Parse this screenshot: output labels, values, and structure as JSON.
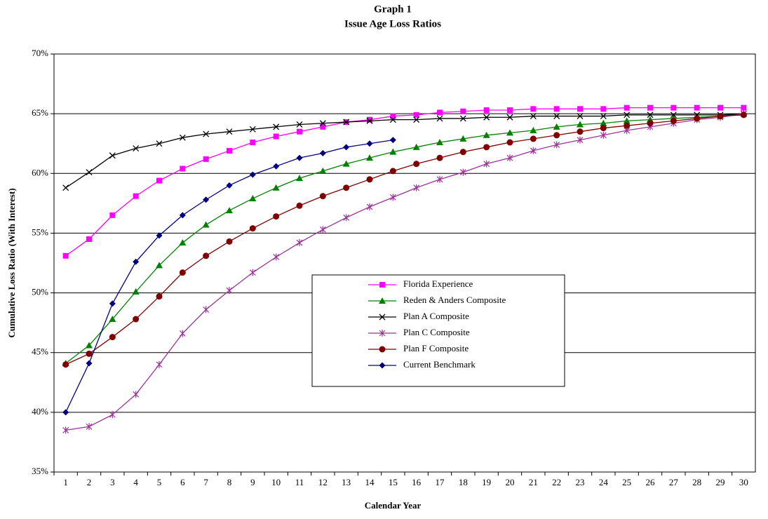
{
  "chart_data": {
    "type": "line",
    "title": "Graph 1",
    "subtitle": "Issue Age Loss Ratios",
    "x_label": "Calendar Year",
    "y_label": "Cumulative Loss Ratio (With Interest)",
    "categories": [
      1,
      2,
      3,
      4,
      5,
      6,
      7,
      8,
      9,
      10,
      11,
      12,
      13,
      14,
      15,
      16,
      17,
      18,
      19,
      20,
      21,
      22,
      23,
      24,
      25,
      26,
      27,
      28,
      29,
      30
    ],
    "ylim": [
      35,
      70
    ],
    "yticks": [
      {
        "value": 35,
        "label": "35%"
      },
      {
        "value": 40,
        "label": "40%"
      },
      {
        "value": 45,
        "label": "45%"
      },
      {
        "value": 50,
        "label": "50%"
      },
      {
        "value": 55,
        "label": "55%"
      },
      {
        "value": 60,
        "label": "60%"
      },
      {
        "value": 65,
        "label": "65%"
      },
      {
        "value": 70,
        "label": "70%"
      }
    ],
    "grid": true,
    "series": [
      {
        "name": "Florida Experience",
        "color": "#ff00ff",
        "marker": "square",
        "values": [
          53.1,
          54.5,
          56.5,
          58.1,
          59.4,
          60.4,
          61.2,
          61.9,
          62.6,
          63.1,
          63.5,
          63.9,
          64.3,
          64.5,
          64.8,
          64.9,
          65.1,
          65.2,
          65.3,
          65.3,
          65.4,
          65.4,
          65.4,
          65.4,
          65.5,
          65.5,
          65.5,
          65.5,
          65.5,
          65.5
        ]
      },
      {
        "name": "Reden & Anders Composite",
        "color": "#008000",
        "marker": "triangle",
        "values": [
          44.1,
          45.6,
          47.8,
          50.1,
          52.3,
          54.2,
          55.7,
          56.9,
          57.9,
          58.8,
          59.6,
          60.2,
          60.8,
          61.3,
          61.8,
          62.2,
          62.6,
          62.9,
          63.2,
          63.4,
          63.6,
          63.9,
          64.1,
          64.2,
          64.4,
          64.5,
          64.6,
          64.7,
          64.8,
          65.0
        ]
      },
      {
        "name": "Plan A Composite",
        "color": "#000000",
        "marker": "x",
        "values": [
          58.8,
          60.1,
          61.5,
          62.1,
          62.5,
          63.0,
          63.3,
          63.5,
          63.7,
          63.9,
          64.1,
          64.2,
          64.3,
          64.4,
          64.5,
          64.5,
          64.6,
          64.6,
          64.7,
          64.7,
          64.8,
          64.8,
          64.8,
          64.8,
          64.9,
          64.9,
          64.9,
          64.9,
          64.9,
          65.0
        ]
      },
      {
        "name": "Plan C Composite",
        "color": "#993399",
        "marker": "asterisk",
        "values": [
          38.5,
          38.8,
          39.8,
          41.5,
          44.0,
          46.6,
          48.6,
          50.2,
          51.7,
          53.0,
          54.2,
          55.3,
          56.3,
          57.2,
          58.0,
          58.8,
          59.5,
          60.1,
          60.8,
          61.3,
          61.9,
          62.4,
          62.8,
          63.2,
          63.6,
          63.9,
          64.2,
          64.5,
          64.7,
          65.0
        ]
      },
      {
        "name": "Plan F Composite",
        "color": "#800000",
        "marker": "circle",
        "values": [
          44.0,
          44.9,
          46.3,
          47.8,
          49.7,
          51.7,
          53.1,
          54.3,
          55.4,
          56.4,
          57.3,
          58.1,
          58.8,
          59.5,
          60.2,
          60.8,
          61.3,
          61.8,
          62.2,
          62.6,
          62.9,
          63.2,
          63.5,
          63.8,
          64.0,
          64.2,
          64.4,
          64.6,
          64.8,
          64.9
        ]
      },
      {
        "name": "Current Benchmark",
        "color": "#000080",
        "marker": "diamond",
        "values": [
          40.0,
          44.1,
          49.1,
          52.6,
          54.8,
          56.5,
          57.8,
          59.0,
          59.9,
          60.6,
          61.3,
          61.7,
          62.2,
          62.5,
          62.8,
          null,
          null,
          null,
          null,
          null,
          null,
          null,
          null,
          null,
          null,
          null,
          null,
          null,
          null,
          null
        ]
      }
    ]
  }
}
